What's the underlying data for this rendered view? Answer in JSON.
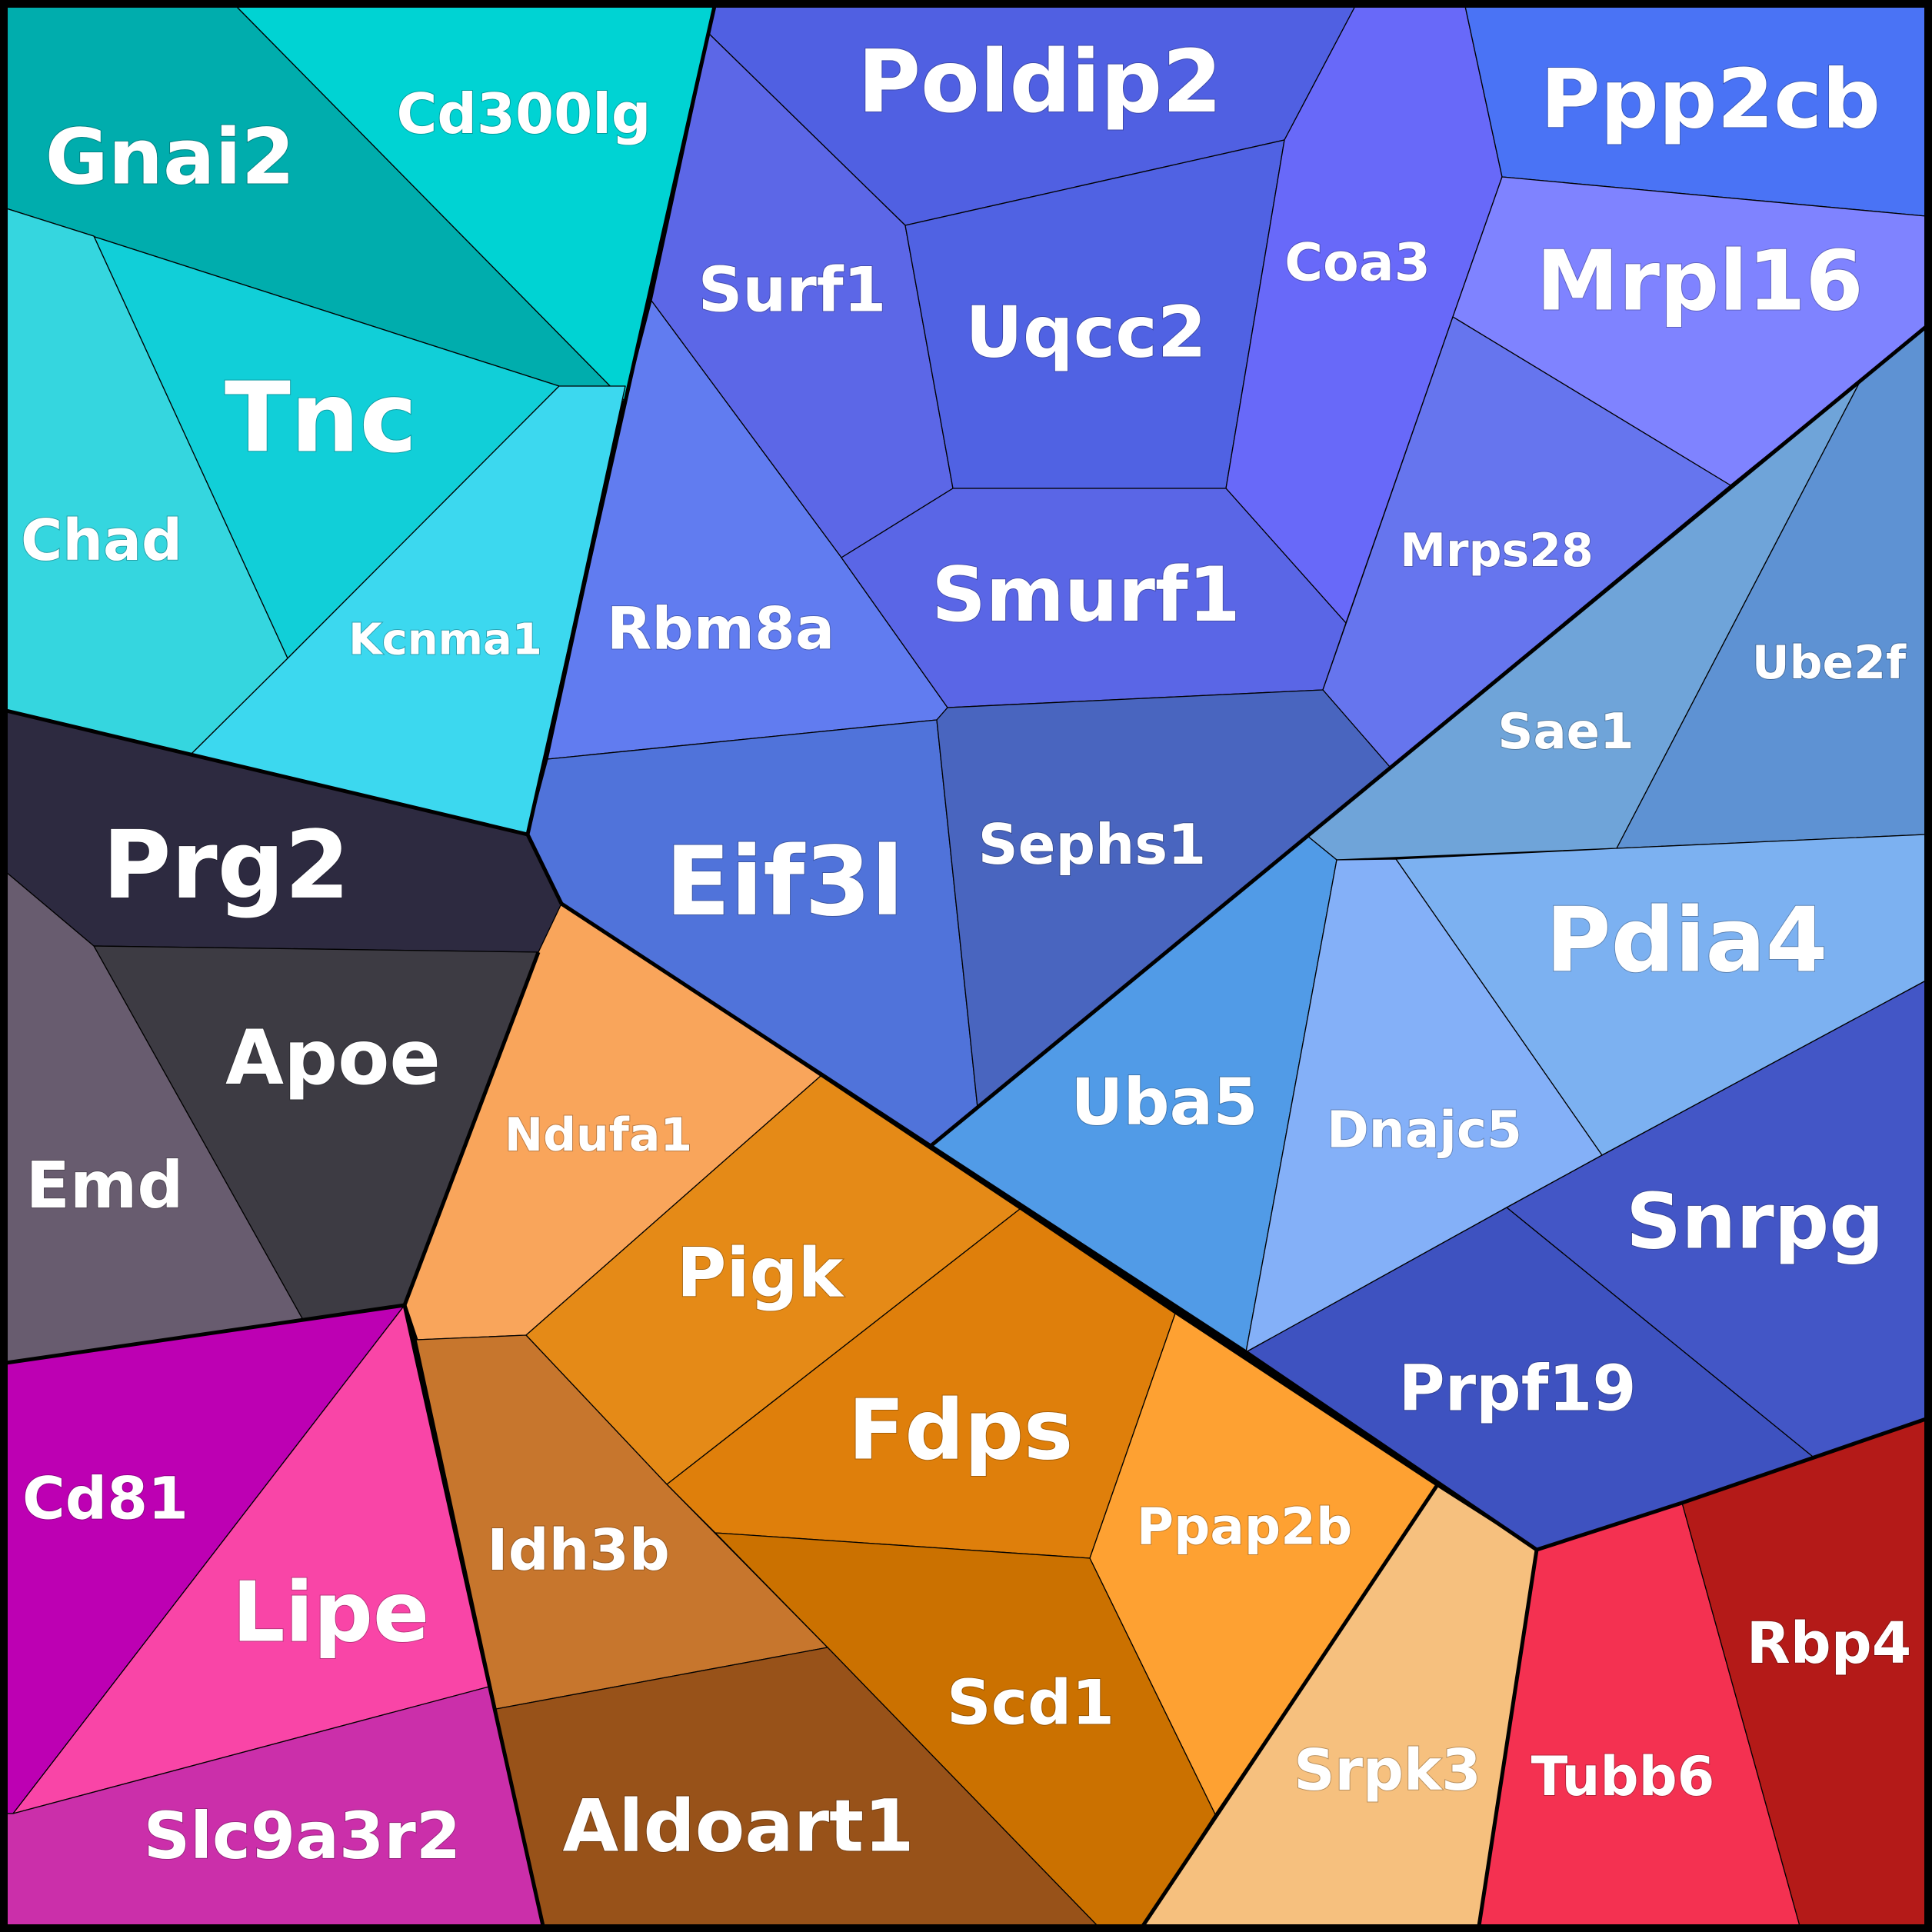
{
  "diagram": {
    "type": "voronoi-treemap",
    "cells": [
      {
        "label": "Gnai2",
        "color": "#00adad"
      },
      {
        "label": "Cd300lg",
        "color": "#00d3d3"
      },
      {
        "label": "Tnc",
        "color": "#11cfd8"
      },
      {
        "label": "Chad",
        "color": "#35d6df"
      },
      {
        "label": "Kcnma1",
        "color": "#3cd8ef"
      },
      {
        "label": "Poldip2",
        "color": "#5060e2"
      },
      {
        "label": "Surf1",
        "color": "#5c67e7"
      },
      {
        "label": "Uqcc2",
        "color": "#5062e3"
      },
      {
        "label": "Coa3",
        "color": "#6869f9"
      },
      {
        "label": "Ppp2cb",
        "color": "#4a73f5"
      },
      {
        "label": "Mrpl16",
        "color": "#7f83ff"
      },
      {
        "label": "Rbm8a",
        "color": "#617cf0"
      },
      {
        "label": "Smurf1",
        "color": "#5a66e6"
      },
      {
        "label": "Mrps28",
        "color": "#6675ee"
      },
      {
        "label": "Eif3l",
        "color": "#5073da"
      },
      {
        "label": "Sephs1",
        "color": "#4965bf"
      },
      {
        "label": "Sae1",
        "color": "#6fa4d9"
      },
      {
        "label": "Ube2f",
        "color": "#5e92d3"
      },
      {
        "label": "Pdia4",
        "color": "#7cb1f1"
      },
      {
        "label": "Uba5",
        "color": "#519be7"
      },
      {
        "label": "Dnajc5",
        "color": "#84b0f8"
      },
      {
        "label": "Snrpg",
        "color": "#4356c6"
      },
      {
        "label": "Prpf19",
        "color": "#3e52c0"
      },
      {
        "label": "Prg2",
        "color": "#2d2a40"
      },
      {
        "label": "Apoe",
        "color": "#3d3b43"
      },
      {
        "label": "Emd",
        "color": "#685c6f"
      },
      {
        "label": "Ndufa1",
        "color": "#f9a55b"
      },
      {
        "label": "Pigk",
        "color": "#e58a17"
      },
      {
        "label": "Fdps",
        "color": "#df7f0b"
      },
      {
        "label": "Ppap2b",
        "color": "#fea132"
      },
      {
        "label": "Idh3b",
        "color": "#c7762d"
      },
      {
        "label": "Scd1",
        "color": "#cb7100"
      },
      {
        "label": "Aldoart1",
        "color": "#985219"
      },
      {
        "label": "Srpk3",
        "color": "#f6c07e"
      },
      {
        "label": "Cd81",
        "color": "#bd00b3"
      },
      {
        "label": "Lipe",
        "color": "#f945a7"
      },
      {
        "label": "Slc9a3r2",
        "color": "#cb2faa"
      },
      {
        "label": "Tubb6",
        "color": "#f43151"
      },
      {
        "label": "Rbp4",
        "color": "#b41a18"
      }
    ]
  }
}
